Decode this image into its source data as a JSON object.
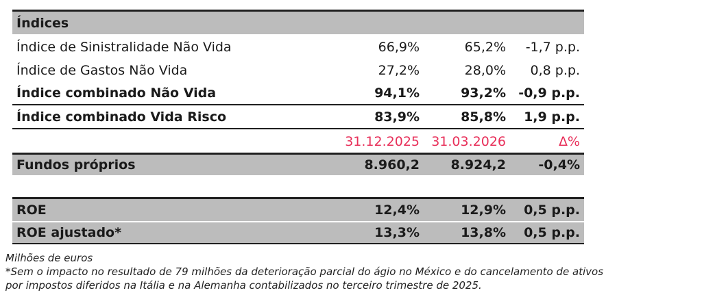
{
  "section_title": "Índices",
  "rows": [
    {
      "label": "Índice de Sinistralidade Não Vida",
      "v1": "66,9%",
      "v2": "65,2%",
      "v3": "-1,7 p.p."
    },
    {
      "label": "Índice de Gastos Não Vida",
      "v1": "27,2%",
      "v2": "28,0%",
      "v3": "0,8 p.p."
    },
    {
      "label": "Índice combinado Não Vida",
      "v1": "94,1%",
      "v2": "93,2%",
      "v3": "-0,9 p.p."
    },
    {
      "label": "Índice combinado Vida Risco",
      "v1": "83,9%",
      "v2": "85,8%",
      "v3": "1,9 p.p."
    }
  ],
  "header_dates": {
    "d1": "31.12.2025",
    "d2": "31.03.2026",
    "delta": "Δ%"
  },
  "fundos": {
    "label": "Fundos próprios",
    "v1": "8.960,2",
    "v2": "8.924,2",
    "v3": "-0,4%"
  },
  "roe": {
    "label": "ROE",
    "v1": "12,4%",
    "v2": "12,9%",
    "v3": "0,5 p.p."
  },
  "roe_adj": {
    "label": "ROE ajustado*",
    "v1": "13,3%",
    "v2": "13,8%",
    "v3": "0,5 p.p."
  },
  "notes": {
    "line1": "Milhões de euros",
    "line2": "*Sem o impacto no resultado de 79 milhões da deterioração parcial do ágio no México e do cancelamento de ativos",
    "line3": "por impostos diferidos na Itália e na Alemanha contabilizados no terceiro trimestre de 2025."
  },
  "colors": {
    "header_gray": "#bcbcbc",
    "accent_pink": "#e8305a",
    "rule": "#1f1f1f"
  }
}
